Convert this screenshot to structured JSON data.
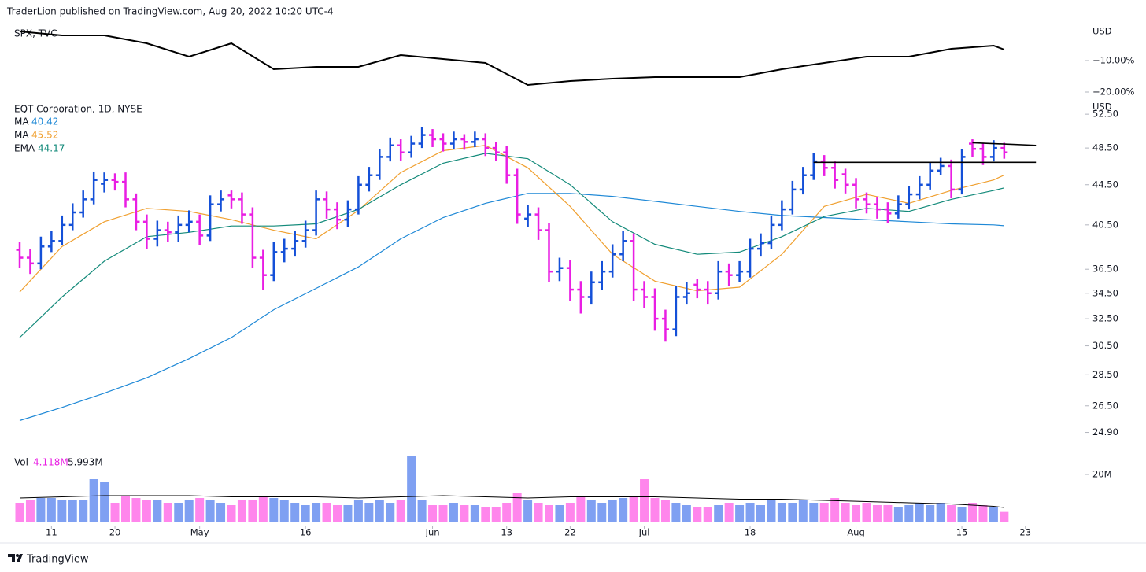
{
  "chart_data": {
    "type": "ohlc",
    "header": "TraderLion published on TradingView.com, Aug 20, 2022 10:20 UTC-4",
    "footer": "TradingView",
    "spx": {
      "title": "SPX, TVC",
      "currency": "USD",
      "color": "#000000",
      "values": [
        -0.75,
        -2,
        -2,
        -4.5,
        -8.75,
        -4.5,
        -12.75,
        -12,
        -12,
        -8.25,
        -9.5,
        -10.75,
        -17.75,
        -16.5,
        -15.75,
        -15.25,
        -15.25,
        -15.25,
        -12.75,
        -10.75,
        -8.75,
        -8.75,
        -6.25,
        -5.25,
        -6.5
      ],
      "ylim": [
        -20.75,
        0.5
      ],
      "yticks": [
        {
          "value": -10,
          "label": "−10.00%"
        },
        {
          "value": -20,
          "label": "−20.00%"
        }
      ]
    },
    "title": "EQT Corporation, 1D, NYSE",
    "currency": "USD",
    "log_scale": true,
    "up_color": "#1450d8",
    "down_color": "#e91ee3",
    "ylim": [
      24.2,
      53.0
    ],
    "yticks": [
      {
        "value": 52.5,
        "label": "52.50"
      },
      {
        "value": 48.5,
        "label": "48.50"
      },
      {
        "value": 44.5,
        "label": "44.50"
      },
      {
        "value": 40.5,
        "label": "40.50"
      },
      {
        "value": 36.5,
        "label": "36.50"
      },
      {
        "value": 34.5,
        "label": "34.50"
      },
      {
        "value": 32.5,
        "label": "32.50"
      },
      {
        "value": 30.5,
        "label": "30.50"
      },
      {
        "value": 28.5,
        "label": "28.50"
      },
      {
        "value": 26.5,
        "label": "26.50"
      },
      {
        "value": 24.9,
        "label": "24.90"
      }
    ],
    "xticks": [
      {
        "value": 3,
        "label": "11"
      },
      {
        "value": 9,
        "label": "20"
      },
      {
        "value": 17,
        "label": "May"
      },
      {
        "value": 27,
        "label": "16"
      },
      {
        "value": 39,
        "label": "Jun"
      },
      {
        "value": 46,
        "label": "13"
      },
      {
        "value": 52,
        "label": "22"
      },
      {
        "value": 59,
        "label": "Jul"
      },
      {
        "value": 69,
        "label": "18"
      },
      {
        "value": 79,
        "label": "Aug"
      },
      {
        "value": 89,
        "label": "15"
      },
      {
        "value": 95,
        "label": "23"
      }
    ],
    "ohlc": [
      [
        38.2,
        38.9,
        36.6,
        37.5
      ],
      [
        37.5,
        38.3,
        36.1,
        37
      ],
      [
        37,
        39.4,
        36.5,
        38.5
      ],
      [
        38.5,
        39.9,
        38,
        39
      ],
      [
        39,
        41.4,
        38.6,
        40.5
      ],
      [
        40.5,
        42.6,
        40,
        41.7
      ],
      [
        41.7,
        43.9,
        41.2,
        43
      ],
      [
        43,
        45.9,
        42.5,
        45
      ],
      [
        44.6,
        45.8,
        43.7,
        45
      ],
      [
        45,
        45.7,
        43.9,
        44.8
      ],
      [
        44.8,
        45.8,
        42.2,
        43
      ],
      [
        43,
        43.6,
        40,
        40.8
      ],
      [
        40.8,
        41.5,
        38.3,
        39.2
      ],
      [
        39.2,
        40.9,
        38.5,
        40
      ],
      [
        40,
        40.8,
        38.9,
        39.8
      ],
      [
        39.8,
        41.4,
        38.9,
        40.5
      ],
      [
        40.5,
        41.9,
        39.8,
        40.8
      ],
      [
        40.8,
        41.5,
        38.6,
        39.5
      ],
      [
        39.5,
        43.4,
        39,
        42.5
      ],
      [
        42.5,
        43.9,
        41.8,
        43
      ],
      [
        43.4,
        43.9,
        42.1,
        43
      ],
      [
        43,
        43.7,
        40.6,
        41.5
      ],
      [
        41.5,
        42.2,
        36.6,
        37.5
      ],
      [
        37.5,
        38.2,
        34.8,
        36
      ],
      [
        36,
        38.9,
        35.5,
        38
      ],
      [
        38,
        39.2,
        37.1,
        38.3
      ],
      [
        38.3,
        39.9,
        37.6,
        39
      ],
      [
        39,
        40.9,
        38.4,
        40
      ],
      [
        40,
        43.9,
        39.5,
        43
      ],
      [
        43,
        43.8,
        41.1,
        42
      ],
      [
        42,
        42.7,
        40.1,
        41
      ],
      [
        41,
        42.9,
        40.3,
        42
      ],
      [
        42,
        45.4,
        41.5,
        44.5
      ],
      [
        44.5,
        46.4,
        43.8,
        45.5
      ],
      [
        45.5,
        48.4,
        45,
        47.5
      ],
      [
        47.5,
        49.7,
        47,
        48.8
      ],
      [
        48.8,
        49.5,
        47.1,
        48
      ],
      [
        48,
        49.9,
        47.4,
        49
      ],
      [
        49,
        50.9,
        48.5,
        50
      ],
      [
        50,
        50.7,
        48.6,
        49.5
      ],
      [
        49.5,
        50.2,
        48.1,
        49
      ],
      [
        49,
        50.4,
        48.4,
        49.5
      ],
      [
        49.5,
        50.1,
        48.3,
        49.2
      ],
      [
        49.2,
        50.4,
        48.6,
        49.5
      ],
      [
        49.5,
        50.2,
        47.6,
        48.5
      ],
      [
        48.5,
        49.2,
        47.1,
        48
      ],
      [
        48,
        48.7,
        44.6,
        45.5
      ],
      [
        45.5,
        46.2,
        40.6,
        41.5
      ],
      [
        41.1,
        42.4,
        40.3,
        41.5
      ],
      [
        41.5,
        42.2,
        39.1,
        40
      ],
      [
        40,
        40.7,
        35.4,
        36.3
      ],
      [
        36.3,
        37.5,
        35.5,
        36.6
      ],
      [
        36.6,
        37.3,
        33.9,
        34.8
      ],
      [
        34.8,
        35.5,
        32.9,
        34.2
      ],
      [
        34.2,
        36.3,
        33.6,
        35.4
      ],
      [
        35.4,
        37.2,
        34.8,
        36.3
      ],
      [
        36.3,
        38.7,
        35.8,
        37.8
      ],
      [
        37.8,
        39.9,
        37.2,
        39
      ],
      [
        39,
        39.7,
        33.9,
        34.8
      ],
      [
        34.8,
        35.5,
        33.3,
        34.2
      ],
      [
        34.2,
        34.9,
        31.6,
        32.5
      ],
      [
        32.5,
        33.2,
        30.8,
        31.7
      ],
      [
        31.7,
        35.1,
        31.2,
        34.2
      ],
      [
        34.2,
        35.4,
        33.6,
        34.5
      ],
      [
        35.2,
        35.7,
        34.1,
        34.8
      ],
      [
        34.8,
        35.5,
        33.6,
        34.5
      ],
      [
        34.5,
        37.2,
        34,
        36.3
      ],
      [
        36.3,
        37,
        35.1,
        36
      ],
      [
        36,
        37.2,
        35.4,
        36.3
      ],
      [
        36.3,
        39.2,
        35.8,
        38.3
      ],
      [
        38.3,
        39.7,
        37.6,
        38.8
      ],
      [
        38.8,
        41.4,
        38.3,
        40.5
      ],
      [
        40.5,
        42.9,
        40,
        42
      ],
      [
        42,
        44.9,
        41.5,
        44
      ],
      [
        44,
        46.4,
        43.5,
        45.5
      ],
      [
        45.5,
        47.9,
        45,
        47
      ],
      [
        47,
        47.7,
        45.4,
        46.3
      ],
      [
        46.3,
        47,
        44.1,
        45
      ],
      [
        45.6,
        46.2,
        43.6,
        44.5
      ],
      [
        44.5,
        45.2,
        42.1,
        43
      ],
      [
        43,
        43.7,
        41.6,
        42.5
      ],
      [
        42.5,
        43.2,
        41.1,
        42
      ],
      [
        42,
        42.7,
        40.7,
        41.6
      ],
      [
        41.6,
        43.4,
        41.1,
        42.5
      ],
      [
        42.5,
        44.4,
        42,
        43.5
      ],
      [
        43.5,
        45.4,
        43,
        44.5
      ],
      [
        44.5,
        46.9,
        44,
        46
      ],
      [
        46,
        47.4,
        45.5,
        46.5
      ],
      [
        46.5,
        47.2,
        43.1,
        44
      ],
      [
        44,
        48.4,
        43.5,
        47.5
      ],
      [
        49,
        49.5,
        47.5,
        48.4
      ],
      [
        48.4,
        49.1,
        46.6,
        47.5
      ],
      [
        47.5,
        49.4,
        47,
        48.5
      ],
      [
        48.5,
        49.1,
        47.3,
        48
      ]
    ],
    "ma_x": [
      0,
      4,
      8,
      12,
      16,
      20,
      24,
      28,
      32,
      36,
      40,
      44,
      48,
      52,
      56,
      60,
      64,
      68,
      72,
      76,
      80,
      84,
      88,
      92,
      93
    ],
    "ma_lines": [
      {
        "name": "MA",
        "color": "#1e88d6",
        "values": [
          25.6,
          26.4,
          27.3,
          28.3,
          29.6,
          31.1,
          33.2,
          34.9,
          36.7,
          39.2,
          41.2,
          42.6,
          43.6,
          43.6,
          43.3,
          42.8,
          42.3,
          41.8,
          41.4,
          41.2,
          41,
          40.8,
          40.6,
          40.5,
          40.42
        ]
      },
      {
        "name": "MA",
        "color": "#f0a030",
        "values": [
          34.6,
          38.5,
          40.8,
          42.1,
          41.8,
          41,
          40,
          39.2,
          41.9,
          45.8,
          48.2,
          48.8,
          46.3,
          42.3,
          37.8,
          35.5,
          34.7,
          35,
          37.8,
          42.3,
          43.5,
          42.6,
          43.9,
          45,
          45.52
        ]
      },
      {
        "name": "EMA",
        "color": "#138a7a",
        "values": [
          31.1,
          34.2,
          37.2,
          39.4,
          39.8,
          40.4,
          40.4,
          40.6,
          42,
          44.5,
          46.8,
          47.9,
          47.3,
          44.5,
          40.8,
          38.7,
          37.8,
          38,
          39.4,
          41.3,
          42.1,
          41.8,
          43,
          43.9,
          44.17
        ]
      }
    ],
    "trendlines": [
      {
        "x": [
          75,
          96
        ],
        "values": [
          46.9,
          46.9
        ]
      },
      {
        "x": [
          90,
          96
        ],
        "values": [
          49.1,
          48.8
        ]
      }
    ],
    "volume": {
      "label": "Vol",
      "legend_labels": [
        "4.118M",
        "5.993M"
      ],
      "up_color": "#7fa0f2",
      "down_color": "#ff86ec",
      "values": [
        8,
        9,
        10,
        10,
        9,
        9,
        9,
        18,
        17,
        8,
        11,
        10,
        9,
        9,
        8,
        8,
        9,
        10,
        9,
        8,
        7,
        9,
        9,
        11,
        10,
        9,
        8,
        7,
        8,
        8,
        7,
        7,
        9,
        8,
        9,
        8,
        9,
        28,
        9,
        7,
        7,
        8,
        7,
        7,
        6,
        6,
        8,
        12,
        9,
        8,
        7,
        7,
        8,
        11,
        9,
        8,
        9,
        10,
        11,
        18,
        10,
        9,
        8,
        7,
        6,
        6,
        7,
        8,
        7,
        8,
        7,
        9,
        8,
        8,
        9,
        8,
        8,
        10,
        8,
        7,
        8,
        7,
        7,
        6,
        7,
        8,
        7,
        8,
        7,
        6,
        8,
        7,
        6,
        4.118
      ],
      "ma_values": [
        10,
        10.5,
        11,
        11,
        11,
        10.5,
        10.5,
        10.5,
        10,
        10.5,
        11,
        10.5,
        10,
        10.5,
        10.5,
        10.5,
        10,
        9.5,
        9.5,
        9,
        8.5,
        8,
        7.5,
        6.5,
        6
      ],
      "ylim": [
        0,
        30
      ],
      "yticks": [
        {
          "value": 20,
          "label": "20M"
        }
      ]
    }
  }
}
